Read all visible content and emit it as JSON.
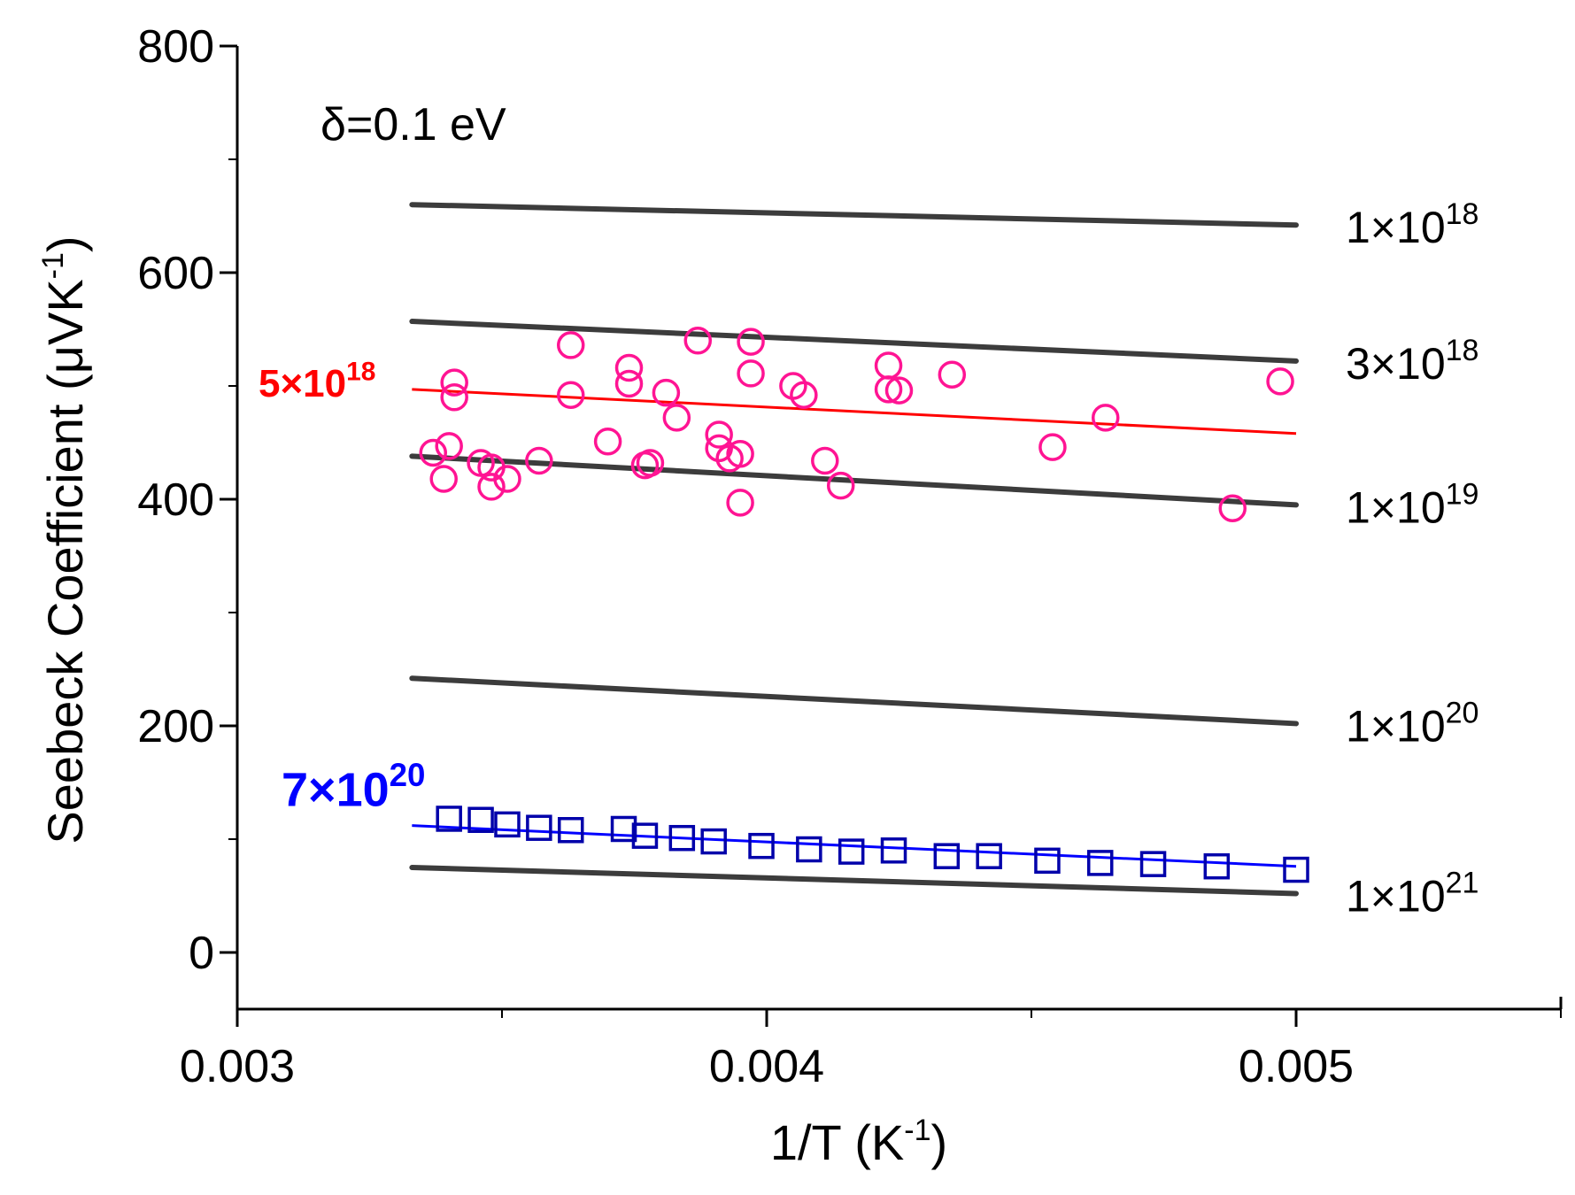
{
  "chart_data": {
    "type": "scatter",
    "title": "",
    "xlabel": "1/T (K",
    "xlabel_sup": "-1",
    "xlabel_end": ")",
    "ylabel": "Seebeck Coefficient (μVK",
    "ylabel_sup": "-1",
    "ylabel_end": ")",
    "xlim": [
      0.003,
      0.0055
    ],
    "ylim": [
      -50,
      800
    ],
    "xticks": [
      {
        "value": 0.003,
        "label": "0.003"
      },
      {
        "value": 0.004,
        "label": "0.004"
      },
      {
        "value": 0.005,
        "label": "0.005"
      }
    ],
    "yticks": [
      {
        "value": 0,
        "label": "0"
      },
      {
        "value": 200,
        "label": "200"
      },
      {
        "value": 400,
        "label": "400"
      },
      {
        "value": 600,
        "label": "600"
      },
      {
        "value": 800,
        "label": "800"
      }
    ],
    "annotation": "δ=0.1 eV",
    "model_curves": [
      {
        "name": "1e18",
        "base": "1×10",
        "exp": "18",
        "x": [
          0.00333,
          0.005
        ],
        "y": [
          660,
          642
        ]
      },
      {
        "name": "3e18",
        "base": "3×10",
        "exp": "18",
        "x": [
          0.00333,
          0.005
        ],
        "y": [
          557,
          522
        ]
      },
      {
        "name": "1e19",
        "base": "1×10",
        "exp": "19",
        "x": [
          0.00333,
          0.005
        ],
        "y": [
          438,
          395
        ]
      },
      {
        "name": "1e20",
        "base": "1×10",
        "exp": "20",
        "x": [
          0.00333,
          0.005
        ],
        "y": [
          242,
          202
        ]
      },
      {
        "name": "1e21",
        "base": "1×10",
        "exp": "21",
        "x": [
          0.00333,
          0.005
        ],
        "y": [
          75,
          52
        ]
      }
    ],
    "fit_curves": [
      {
        "name": "5e18",
        "base": "5×10",
        "exp": "18",
        "color": "#ff0000",
        "x": [
          0.00333,
          0.005
        ],
        "y": [
          497,
          458
        ]
      },
      {
        "name": "7e20",
        "base": "7×10",
        "exp": "20",
        "color": "#0000ff",
        "x": [
          0.00333,
          0.005
        ],
        "y": [
          112,
          76
        ]
      }
    ],
    "series": [
      {
        "name": "circles",
        "marker": "circle",
        "color": "#ff1493",
        "points": [
          [
            0.00337,
            441
          ],
          [
            0.00339,
            418
          ],
          [
            0.0034,
            447
          ],
          [
            0.00341,
            503
          ],
          [
            0.00341,
            490
          ],
          [
            0.00346,
            432
          ],
          [
            0.00348,
            411
          ],
          [
            0.00348,
            428
          ],
          [
            0.00351,
            418
          ],
          [
            0.00357,
            434
          ],
          [
            0.00363,
            536
          ],
          [
            0.00363,
            492
          ],
          [
            0.0037,
            451
          ],
          [
            0.00374,
            516
          ],
          [
            0.00374,
            502
          ],
          [
            0.00377,
            430
          ],
          [
            0.00378,
            432
          ],
          [
            0.00381,
            494
          ],
          [
            0.00383,
            472
          ],
          [
            0.00387,
            540
          ],
          [
            0.00391,
            457
          ],
          [
            0.00391,
            445
          ],
          [
            0.00393,
            436
          ],
          [
            0.00395,
            440
          ],
          [
            0.00395,
            397
          ],
          [
            0.00397,
            539
          ],
          [
            0.00397,
            511
          ],
          [
            0.00405,
            500
          ],
          [
            0.00407,
            492
          ],
          [
            0.00411,
            434
          ],
          [
            0.00414,
            412
          ],
          [
            0.00423,
            518
          ],
          [
            0.00423,
            497
          ],
          [
            0.00425,
            496
          ],
          [
            0.00435,
            510
          ],
          [
            0.00454,
            446
          ],
          [
            0.00464,
            472
          ],
          [
            0.00488,
            392
          ],
          [
            0.00497,
            504
          ]
        ]
      },
      {
        "name": "squares",
        "marker": "square",
        "color": "#0000aa",
        "points": [
          [
            0.0034,
            118
          ],
          [
            0.00346,
            117
          ],
          [
            0.00351,
            113
          ],
          [
            0.00357,
            110
          ],
          [
            0.00363,
            108
          ],
          [
            0.00373,
            109
          ],
          [
            0.00377,
            103
          ],
          [
            0.00384,
            101
          ],
          [
            0.0039,
            98
          ],
          [
            0.00399,
            94
          ],
          [
            0.00408,
            91
          ],
          [
            0.00416,
            89
          ],
          [
            0.00424,
            90
          ],
          [
            0.00434,
            85
          ],
          [
            0.00442,
            85
          ],
          [
            0.00453,
            81
          ],
          [
            0.00463,
            79
          ],
          [
            0.00473,
            78
          ],
          [
            0.00485,
            76
          ],
          [
            0.005,
            73
          ]
        ]
      }
    ]
  }
}
